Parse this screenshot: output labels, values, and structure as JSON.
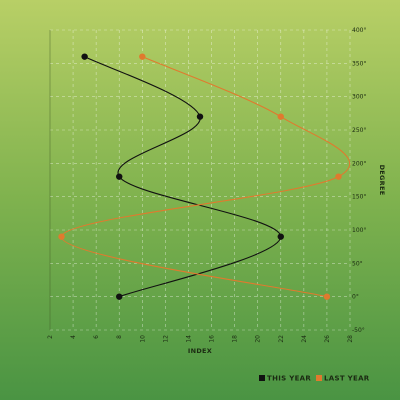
{
  "chart_data": {
    "type": "line",
    "title": "",
    "xlabel": "INDEX",
    "ylabel": "DEGREE",
    "xlim": [
      2,
      28
    ],
    "ylim": [
      -50,
      400
    ],
    "x_ticks": [
      2,
      4,
      6,
      8,
      10,
      12,
      14,
      16,
      18,
      20,
      22,
      24,
      26,
      28
    ],
    "y_ticks": [
      -50,
      0,
      50,
      100,
      150,
      200,
      250,
      300,
      350,
      400
    ],
    "y_tick_suffix": "°",
    "grid": true,
    "legend_position": "bottom-right",
    "series": [
      {
        "name": "THIS YEAR",
        "color": "#111111",
        "points": [
          [
            8,
            0
          ],
          [
            22,
            90
          ],
          [
            8,
            180
          ],
          [
            15,
            270
          ],
          [
            5,
            360
          ]
        ]
      },
      {
        "name": "LAST YEAR",
        "color": "#e07a2e",
        "points": [
          [
            26,
            0
          ],
          [
            3,
            90
          ],
          [
            27,
            180
          ],
          [
            22,
            270
          ],
          [
            10,
            360
          ]
        ]
      }
    ]
  }
}
